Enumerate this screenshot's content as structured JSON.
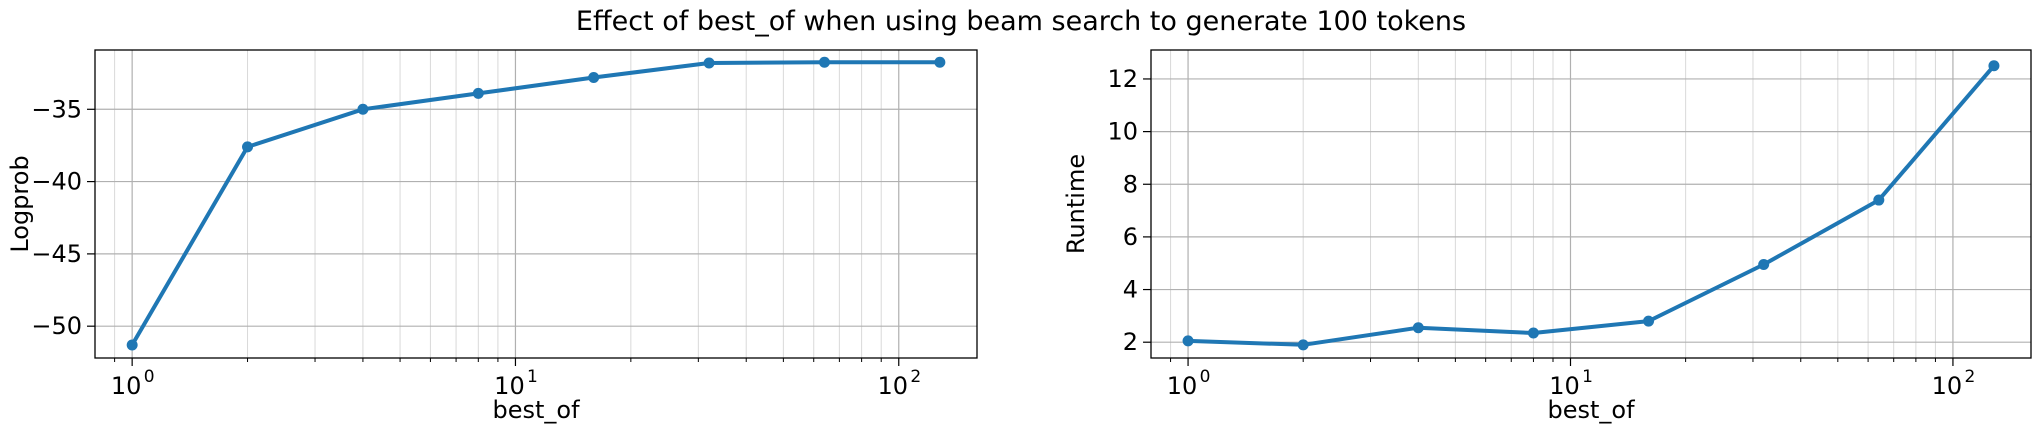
{
  "figure": {
    "title": "Effect of best_of when using beam search to generate 100 tokens"
  },
  "chart_data": [
    {
      "type": "line",
      "xscale": "log",
      "xlabel": "best_of",
      "ylabel": "Logprob",
      "xlim": [
        0.8,
        160
      ],
      "ylim": [
        -52.2,
        -30.9
      ],
      "x_ticks": [
        1,
        10,
        100
      ],
      "x_tick_labels": [
        [
          "10",
          "0"
        ],
        [
          "10",
          "1"
        ],
        [
          "10",
          "2"
        ]
      ],
      "y_ticks": [
        -50,
        -45,
        -40,
        -35
      ],
      "y_tick_labels": [
        "−50",
        "−45",
        "−40",
        "−35"
      ],
      "grid": "major and minor",
      "color": "#1f77b4",
      "series": [
        {
          "x": [
            1,
            2,
            4,
            8,
            16,
            32,
            64,
            128
          ],
          "y": [
            -51.3,
            -37.6,
            -35.0,
            -33.9,
            -32.8,
            -31.8,
            -31.75,
            -31.75
          ]
        }
      ]
    },
    {
      "type": "line",
      "xscale": "log",
      "xlabel": "best_of",
      "ylabel": "Runtime",
      "xlim": [
        0.8,
        160
      ],
      "ylim": [
        1.4,
        13.1
      ],
      "x_ticks": [
        1,
        10,
        100
      ],
      "x_tick_labels": [
        [
          "10",
          "0"
        ],
        [
          "10",
          "1"
        ],
        [
          "10",
          "2"
        ]
      ],
      "y_ticks": [
        2,
        4,
        6,
        8,
        10,
        12
      ],
      "y_tick_labels": [
        "2",
        "4",
        "6",
        "8",
        "10",
        "12"
      ],
      "grid": "major and minor",
      "color": "#1f77b4",
      "series": [
        {
          "x": [
            1,
            2,
            4,
            8,
            16,
            32,
            64,
            128
          ],
          "y": [
            2.05,
            1.9,
            2.55,
            2.35,
            2.8,
            4.95,
            7.4,
            12.5
          ]
        }
      ]
    }
  ]
}
